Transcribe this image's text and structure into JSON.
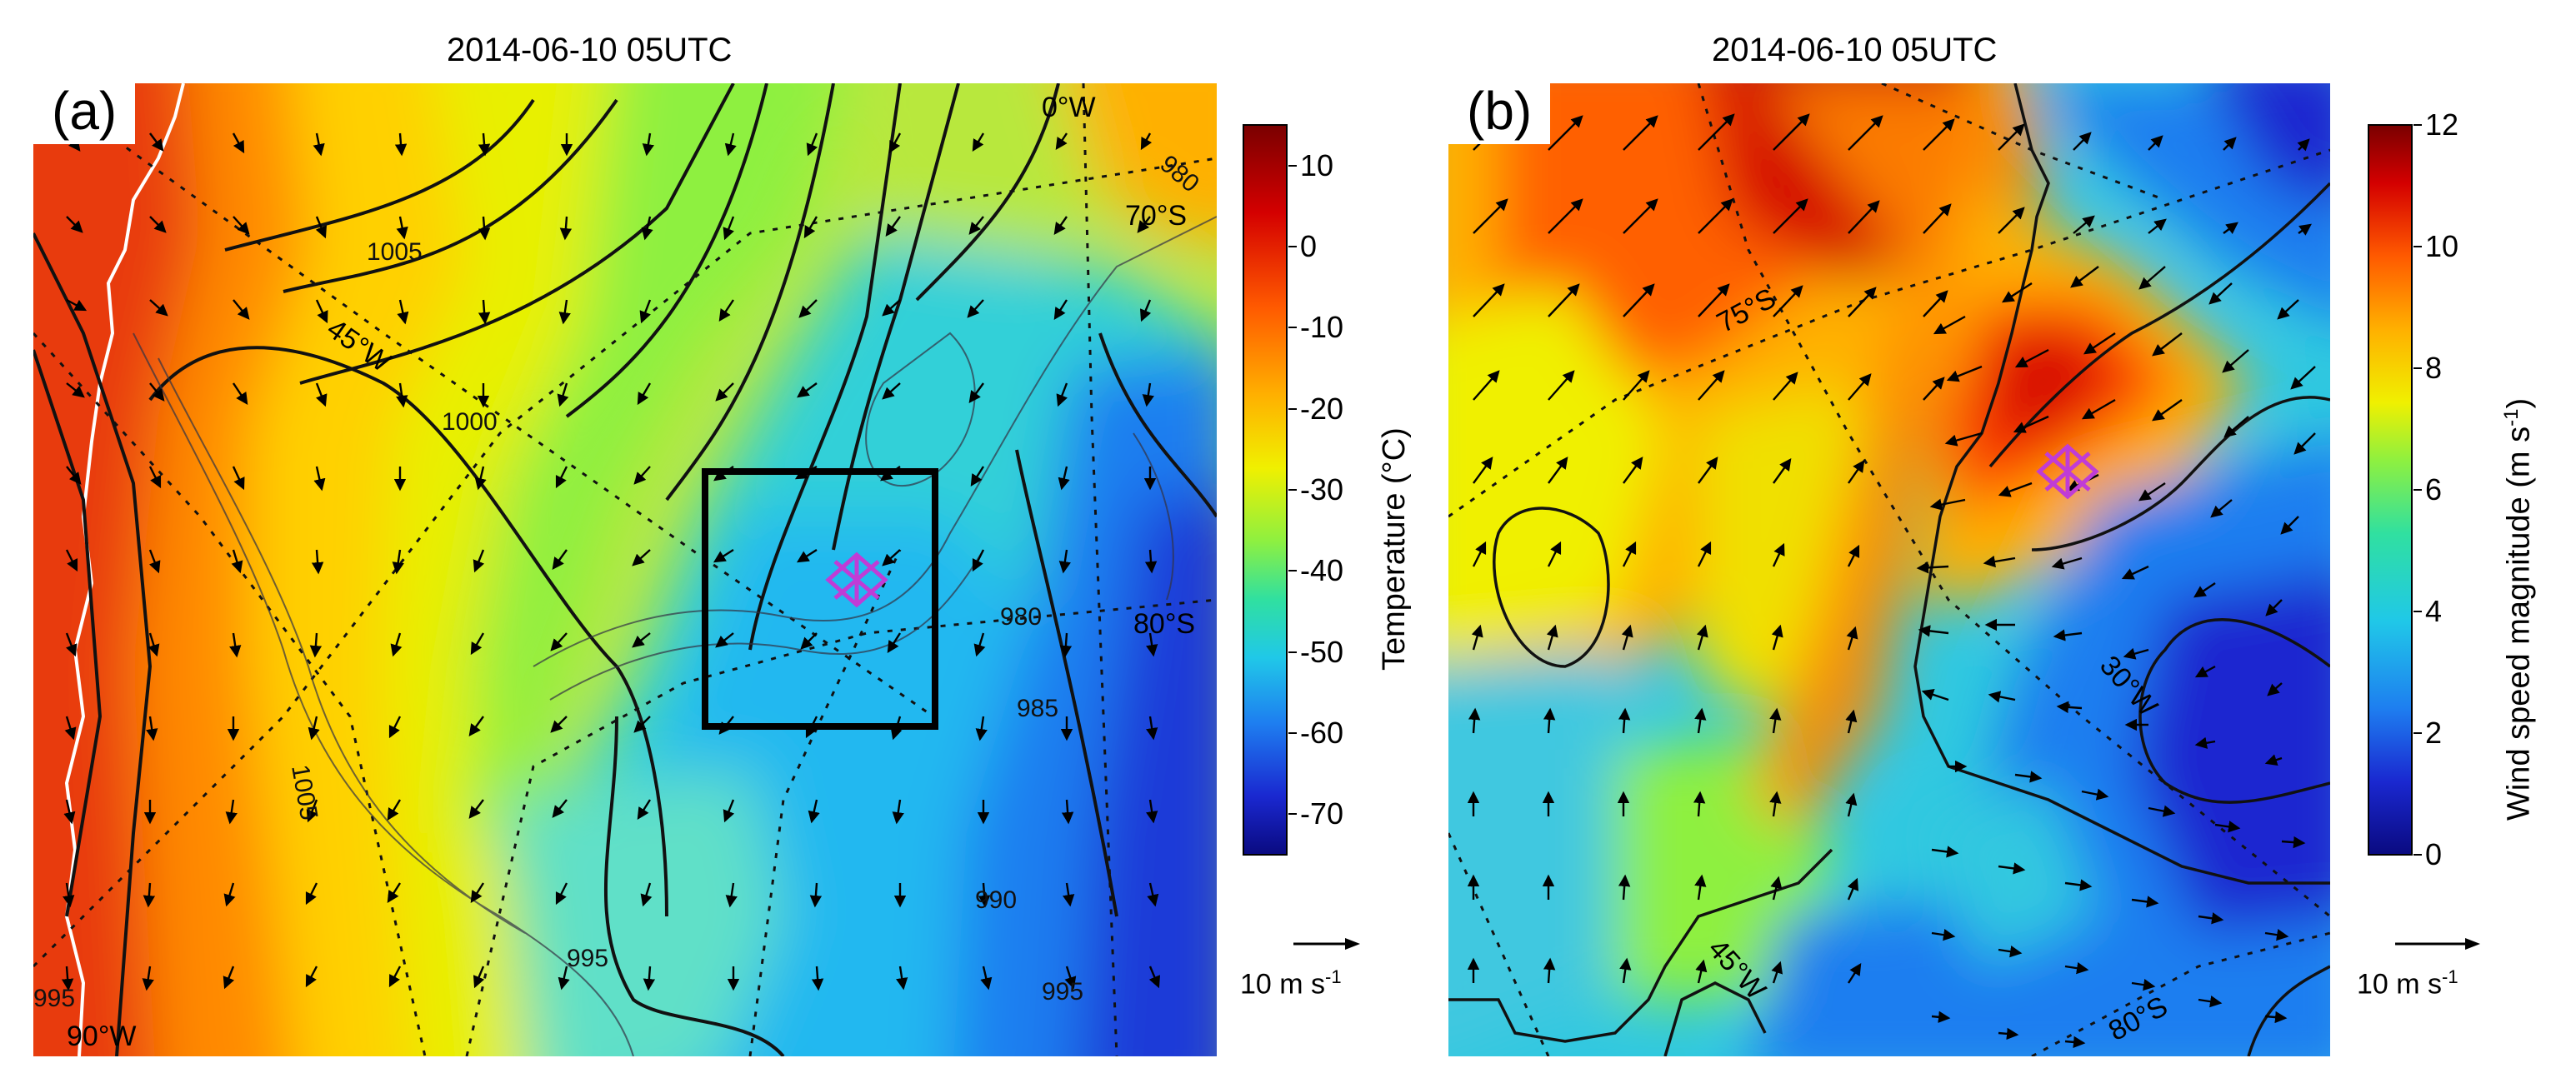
{
  "panels": [
    {
      "id": "a",
      "label": "(a)",
      "title": "2014-06-10 05UTC",
      "colorbar": {
        "title": "Temperature (°C)",
        "ticks": [
          "10",
          "0",
          "-10",
          "-20",
          "-30",
          "-40",
          "-50",
          "-60",
          "-70"
        ],
        "range": [
          -75,
          15
        ]
      },
      "reference_vector": {
        "label": "10 m s-1",
        "value_ms": 10
      },
      "contour_labels": [
        "1005",
        "1000",
        "995",
        "990",
        "985",
        "980",
        "995",
        "995",
        "1005",
        "980"
      ],
      "grid_labels": [
        "0°W",
        "70°S",
        "45°W",
        "80°S",
        "90°W"
      ]
    },
    {
      "id": "b",
      "label": "(b)",
      "title": "2014-06-10 05UTC",
      "colorbar": {
        "title": "Wind speed magnitude (m s-1)",
        "ticks": [
          "12",
          "10",
          "8",
          "6",
          "4",
          "2",
          "0"
        ],
        "range": [
          0,
          12
        ]
      },
      "reference_vector": {
        "label": "10 m s-1",
        "value_ms": 10
      },
      "grid_labels": [
        "75°S",
        "30°W",
        "45°W",
        "80°S"
      ]
    }
  ],
  "colors": {
    "marker": "#c03cd6",
    "temperature_scale": [
      "#7a0000",
      "#d40000",
      "#ff5a00",
      "#ffb000",
      "#f0f000",
      "#8ef040",
      "#30e0a0",
      "#20c8e8",
      "#1e7ef0",
      "#1a28d0",
      "#0a0a80"
    ],
    "wind_scale": [
      "#0a0a80",
      "#1a28d0",
      "#1e7ef0",
      "#20c8e8",
      "#30e0a0",
      "#8ef040",
      "#f0f000",
      "#ffb000",
      "#ff5a00",
      "#d40000",
      "#7a0000"
    ]
  }
}
